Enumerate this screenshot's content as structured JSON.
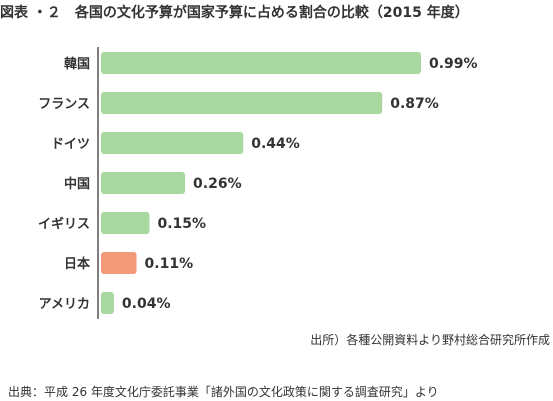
{
  "chart_data": {
    "type": "bar",
    "orientation": "horizontal",
    "title": "図表 ・２　各国の文化予算が国家予算に占める割合の比較（2015 年度）",
    "categories": [
      "韓国",
      "フランス",
      "ドイツ",
      "中国",
      "イギリス",
      "日本",
      "アメリカ"
    ],
    "values": [
      0.99,
      0.87,
      0.44,
      0.26,
      0.15,
      0.11,
      0.04
    ],
    "value_labels": [
      "0.99%",
      "0.87%",
      "0.44%",
      "0.26%",
      "0.15%",
      "0.11%",
      "0.04%"
    ],
    "xlim": [
      0,
      0.99
    ],
    "grid": false,
    "colors": {
      "default": "#a8d8a0",
      "highlight": "#f2997a",
      "axis": "#555555"
    },
    "highlight_category": "日本"
  },
  "sources": {
    "line1": "出所）各種公開資料より野村総合研究所作成",
    "line2": "出典：平成 26 年度文化庁委託事業「諸外国の文化政策に関する調査研究」より"
  }
}
